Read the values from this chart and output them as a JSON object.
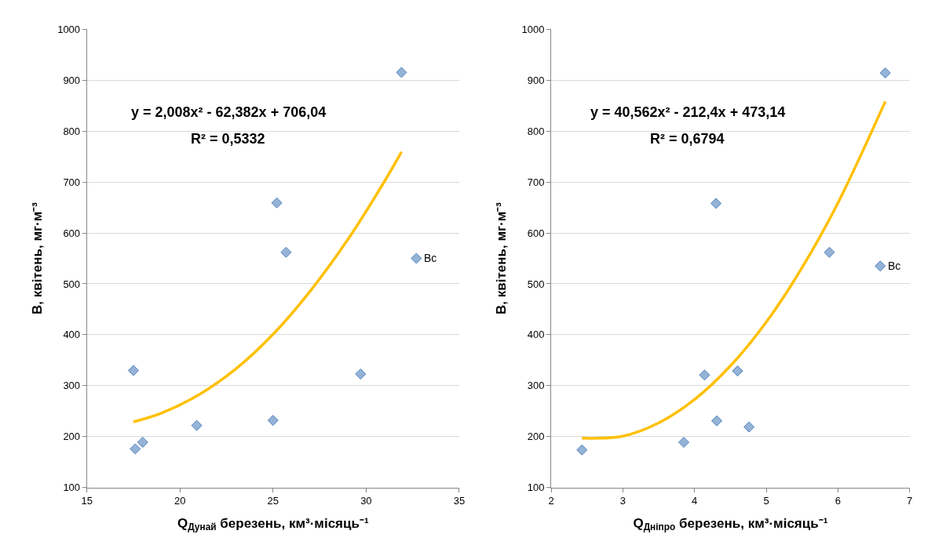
{
  "chart_data": [
    {
      "type": "scatter",
      "xlabel": "Q$_{Дунай}$ березень, км³·місяць⁻¹",
      "ylabel": "B, квітень, мг·м⁻³",
      "xlim": [
        15,
        35
      ],
      "xticks": [
        15,
        20,
        25,
        30,
        35
      ],
      "ylim": [
        100,
        1000
      ],
      "yticks": [
        100,
        200,
        300,
        400,
        500,
        600,
        700,
        800,
        900,
        1000
      ],
      "grid": "y",
      "marker": "diamond",
      "series": [
        {
          "color": "#95b3d7",
          "x": [
            17.5,
            17.6,
            18.0,
            20.9,
            25.0,
            25.2,
            25.7,
            29.7,
            31.9,
            32.7
          ],
          "values": [
            330,
            176,
            189,
            222,
            232,
            659,
            562,
            323,
            915,
            550
          ]
        },
        {
          "type": "line",
          "color": "#ffc000",
          "marker": "none",
          "x": [
            17.5,
            19,
            21,
            23,
            25,
            27,
            29,
            31,
            31.9
          ],
          "values": [
            229,
            246,
            282,
            333,
            401,
            486,
            586,
            702,
            759
          ]
        }
      ],
      "annotations": [
        "y = 2,008x² - 62,382x + 706,04",
        "R² = 0,5332",
        {
          "text": "Bc",
          "x": 32.7,
          "y": 550
        }
      ]
    },
    {
      "type": "scatter",
      "xlabel": "Q$_{Дніпро}$ березень, км³·місяць⁻¹",
      "ylabel": "B, квітень, мг·м⁻³",
      "xlim": [
        2,
        7
      ],
      "xticks": [
        2,
        3,
        4,
        5,
        6,
        7
      ],
      "ylim": [
        100,
        1000
      ],
      "yticks": [
        100,
        200,
        300,
        400,
        500,
        600,
        700,
        800,
        900,
        1000
      ],
      "grid": "y",
      "marker": "diamond",
      "series": [
        {
          "color": "#95b3d7",
          "x": [
            2.43,
            3.85,
            4.14,
            4.31,
            4.3,
            4.6,
            4.76,
            5.88,
            6.66,
            6.59
          ],
          "values": [
            174,
            189,
            321,
            231,
            658,
            329,
            219,
            562,
            914,
            535
          ]
        },
        {
          "type": "line",
          "color": "#ffc000",
          "marker": "none",
          "x": [
            2.43,
            3,
            3.5,
            4,
            4.5,
            5,
            5.5,
            6,
            6.66
          ],
          "values": [
            197,
            201,
            227,
            273,
            339,
            425,
            532,
            659,
            858
          ]
        }
      ],
      "annotations": [
        "y = 40,562x² - 212,4x + 473,14",
        "R² = 0,6794",
        {
          "text": "Bc",
          "x": 6.59,
          "y": 535
        }
      ]
    }
  ]
}
